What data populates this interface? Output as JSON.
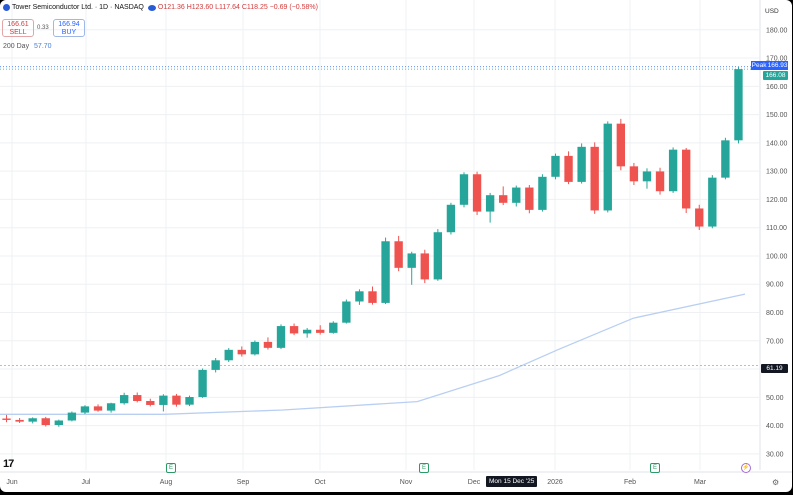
{
  "header": {
    "title": "Tower Semiconductor Ltd. · 1D · NASDAQ",
    "ohlc": "O121.36 H123.60 L117.64 C118.25 −0.69 (−0.58%)",
    "sell_price": "166.61",
    "sell_label": "SELL",
    "spread": "0.33",
    "buy_price": "166.94",
    "buy_label": "BUY",
    "ma_label": "200 Day",
    "ma_value": "57.70"
  },
  "price_axis": {
    "currency": "USD",
    "ticks": [
      "180.00",
      "170.00",
      "160.00",
      "150.00",
      "140.00",
      "130.00",
      "120.00",
      "110.00",
      "100.00",
      "90.00",
      "80.00",
      "70.00",
      "60.00",
      "50.00",
      "40.00",
      "30.00"
    ]
  },
  "time_axis": {
    "ticks": [
      "Jun",
      "Jul",
      "Aug",
      "Sep",
      "Oct",
      "Nov",
      "Dec",
      "2026",
      "Feb",
      "Mar"
    ],
    "crosshair_label": "Mon 15 Dec '25"
  },
  "price_tags": {
    "peak_label": "Peak",
    "peak_value": "166.93",
    "last_value": "166.08",
    "crosshair_value": "61.19"
  },
  "events": {
    "earnings_glyph": "E",
    "split_glyph": "⚡"
  },
  "colors": {
    "up": "#26a69a",
    "down": "#ef5350",
    "ma": "#b9cff2",
    "grid": "#eef0f3",
    "text": "#555555"
  },
  "chart_data": {
    "type": "candlestick",
    "title": "Tower Semiconductor Ltd. · 1D · NASDAQ",
    "ylim": [
      25,
      187
    ],
    "x_range": [
      "Jun",
      "Mar"
    ],
    "candles_weekly_approx": [
      [
        42.5,
        43.8,
        41.2,
        42.0
      ],
      [
        42.0,
        42.7,
        40.9,
        41.4
      ],
      [
        41.4,
        42.9,
        40.8,
        42.6
      ],
      [
        42.6,
        43.1,
        39.7,
        40.2
      ],
      [
        40.2,
        42.1,
        39.6,
        41.8
      ],
      [
        41.8,
        45.0,
        41.5,
        44.6
      ],
      [
        44.6,
        47.2,
        44.1,
        46.8
      ],
      [
        46.8,
        47.5,
        44.9,
        45.3
      ],
      [
        45.3,
        48.1,
        44.6,
        47.9
      ],
      [
        47.9,
        51.6,
        47.4,
        50.8
      ],
      [
        50.8,
        51.7,
        48.2,
        48.7
      ],
      [
        48.7,
        49.5,
        46.8,
        47.3
      ],
      [
        47.3,
        51.1,
        45.0,
        50.6
      ],
      [
        50.6,
        51.2,
        46.7,
        47.4
      ],
      [
        47.4,
        50.6,
        46.9,
        50.1
      ],
      [
        50.1,
        60.2,
        49.8,
        59.7
      ],
      [
        59.7,
        63.9,
        58.8,
        63.1
      ],
      [
        63.1,
        67.4,
        62.5,
        66.8
      ],
      [
        66.8,
        68.0,
        64.4,
        65.2
      ],
      [
        65.2,
        70.1,
        64.8,
        69.6
      ],
      [
        69.6,
        71.2,
        66.9,
        67.5
      ],
      [
        67.5,
        75.8,
        67.1,
        75.2
      ],
      [
        75.2,
        76.1,
        72.0,
        72.6
      ],
      [
        72.6,
        74.5,
        71.1,
        73.9
      ],
      [
        73.9,
        75.5,
        72.2,
        72.8
      ],
      [
        72.8,
        76.9,
        72.5,
        76.4
      ],
      [
        76.4,
        84.6,
        76.1,
        83.9
      ],
      [
        83.9,
        88.2,
        82.7,
        87.5
      ],
      [
        87.5,
        89.2,
        82.8,
        83.4
      ],
      [
        83.4,
        106.5,
        83.0,
        105.2
      ],
      [
        105.2,
        107.1,
        94.6,
        95.8
      ],
      [
        95.8,
        101.5,
        89.8,
        100.9
      ],
      [
        100.9,
        102.2,
        90.4,
        91.7
      ],
      [
        91.7,
        109.5,
        91.2,
        108.4
      ],
      [
        108.4,
        118.8,
        107.6,
        118.1
      ],
      [
        118.1,
        129.6,
        117.2,
        128.9
      ],
      [
        128.9,
        129.8,
        114.5,
        115.7
      ],
      [
        115.7,
        122.3,
        111.8,
        121.5
      ],
      [
        121.5,
        124.6,
        118.0,
        118.8
      ],
      [
        118.8,
        124.9,
        117.5,
        124.2
      ],
      [
        124.2,
        125.1,
        115.1,
        116.3
      ],
      [
        116.3,
        128.9,
        115.7,
        128.0
      ],
      [
        128.0,
        136.2,
        127.1,
        135.4
      ],
      [
        135.4,
        137.0,
        125.4,
        126.2
      ],
      [
        126.2,
        139.8,
        125.6,
        138.6
      ],
      [
        138.6,
        140.2,
        114.9,
        116.1
      ],
      [
        116.1,
        147.6,
        115.4,
        146.8
      ],
      [
        146.8,
        148.5,
        130.3,
        131.7
      ],
      [
        131.7,
        132.9,
        125.1,
        126.4
      ],
      [
        126.4,
        131.0,
        123.8,
        129.9
      ],
      [
        129.9,
        131.2,
        121.7,
        122.9
      ],
      [
        122.9,
        138.4,
        122.3,
        137.6
      ],
      [
        137.6,
        138.2,
        115.2,
        116.8
      ],
      [
        116.8,
        118.1,
        109.2,
        110.4
      ],
      [
        110.4,
        128.6,
        109.8,
        127.7
      ],
      [
        127.7,
        141.8,
        127.1,
        140.9
      ],
      [
        140.9,
        166.93,
        139.8,
        166.08
      ]
    ],
    "series": [
      {
        "name": "200 Day",
        "x_fraction": [
          0,
          0.22,
          0.38,
          0.56,
          0.67,
          0.75,
          0.85,
          1.0
        ],
        "values": [
          44.0,
          44.0,
          45.5,
          48.5,
          57.7,
          67.0,
          78.0,
          86.5
        ]
      }
    ]
  }
}
